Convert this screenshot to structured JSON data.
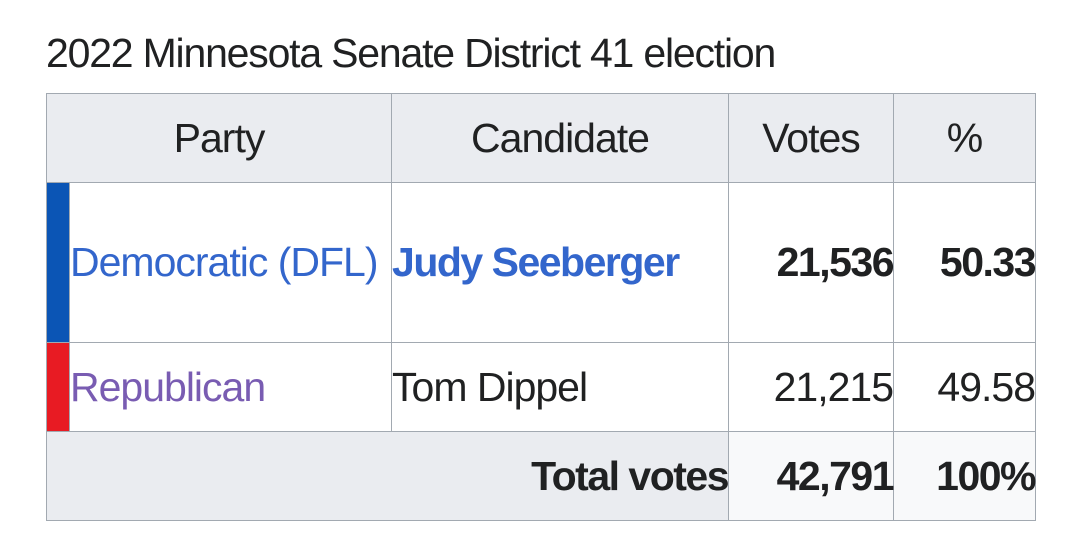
{
  "title": "2022 Minnesota Senate District 41 election",
  "headers": {
    "party": "Party",
    "candidate": "Candidate",
    "votes": "Votes",
    "percent": "%"
  },
  "rows": [
    {
      "party": "Democratic (DFL)",
      "party_color": "#0b55b5",
      "candidate": "Judy Seeberger",
      "votes": "21,536",
      "percent": "50.33",
      "winner": true
    },
    {
      "party": "Republican",
      "party_color": "#e81b23",
      "candidate": "Tom Dippel",
      "votes": "21,215",
      "percent": "49.58",
      "winner": false
    }
  ],
  "total": {
    "label": "Total votes",
    "votes": "42,791",
    "percent": "100%"
  }
}
